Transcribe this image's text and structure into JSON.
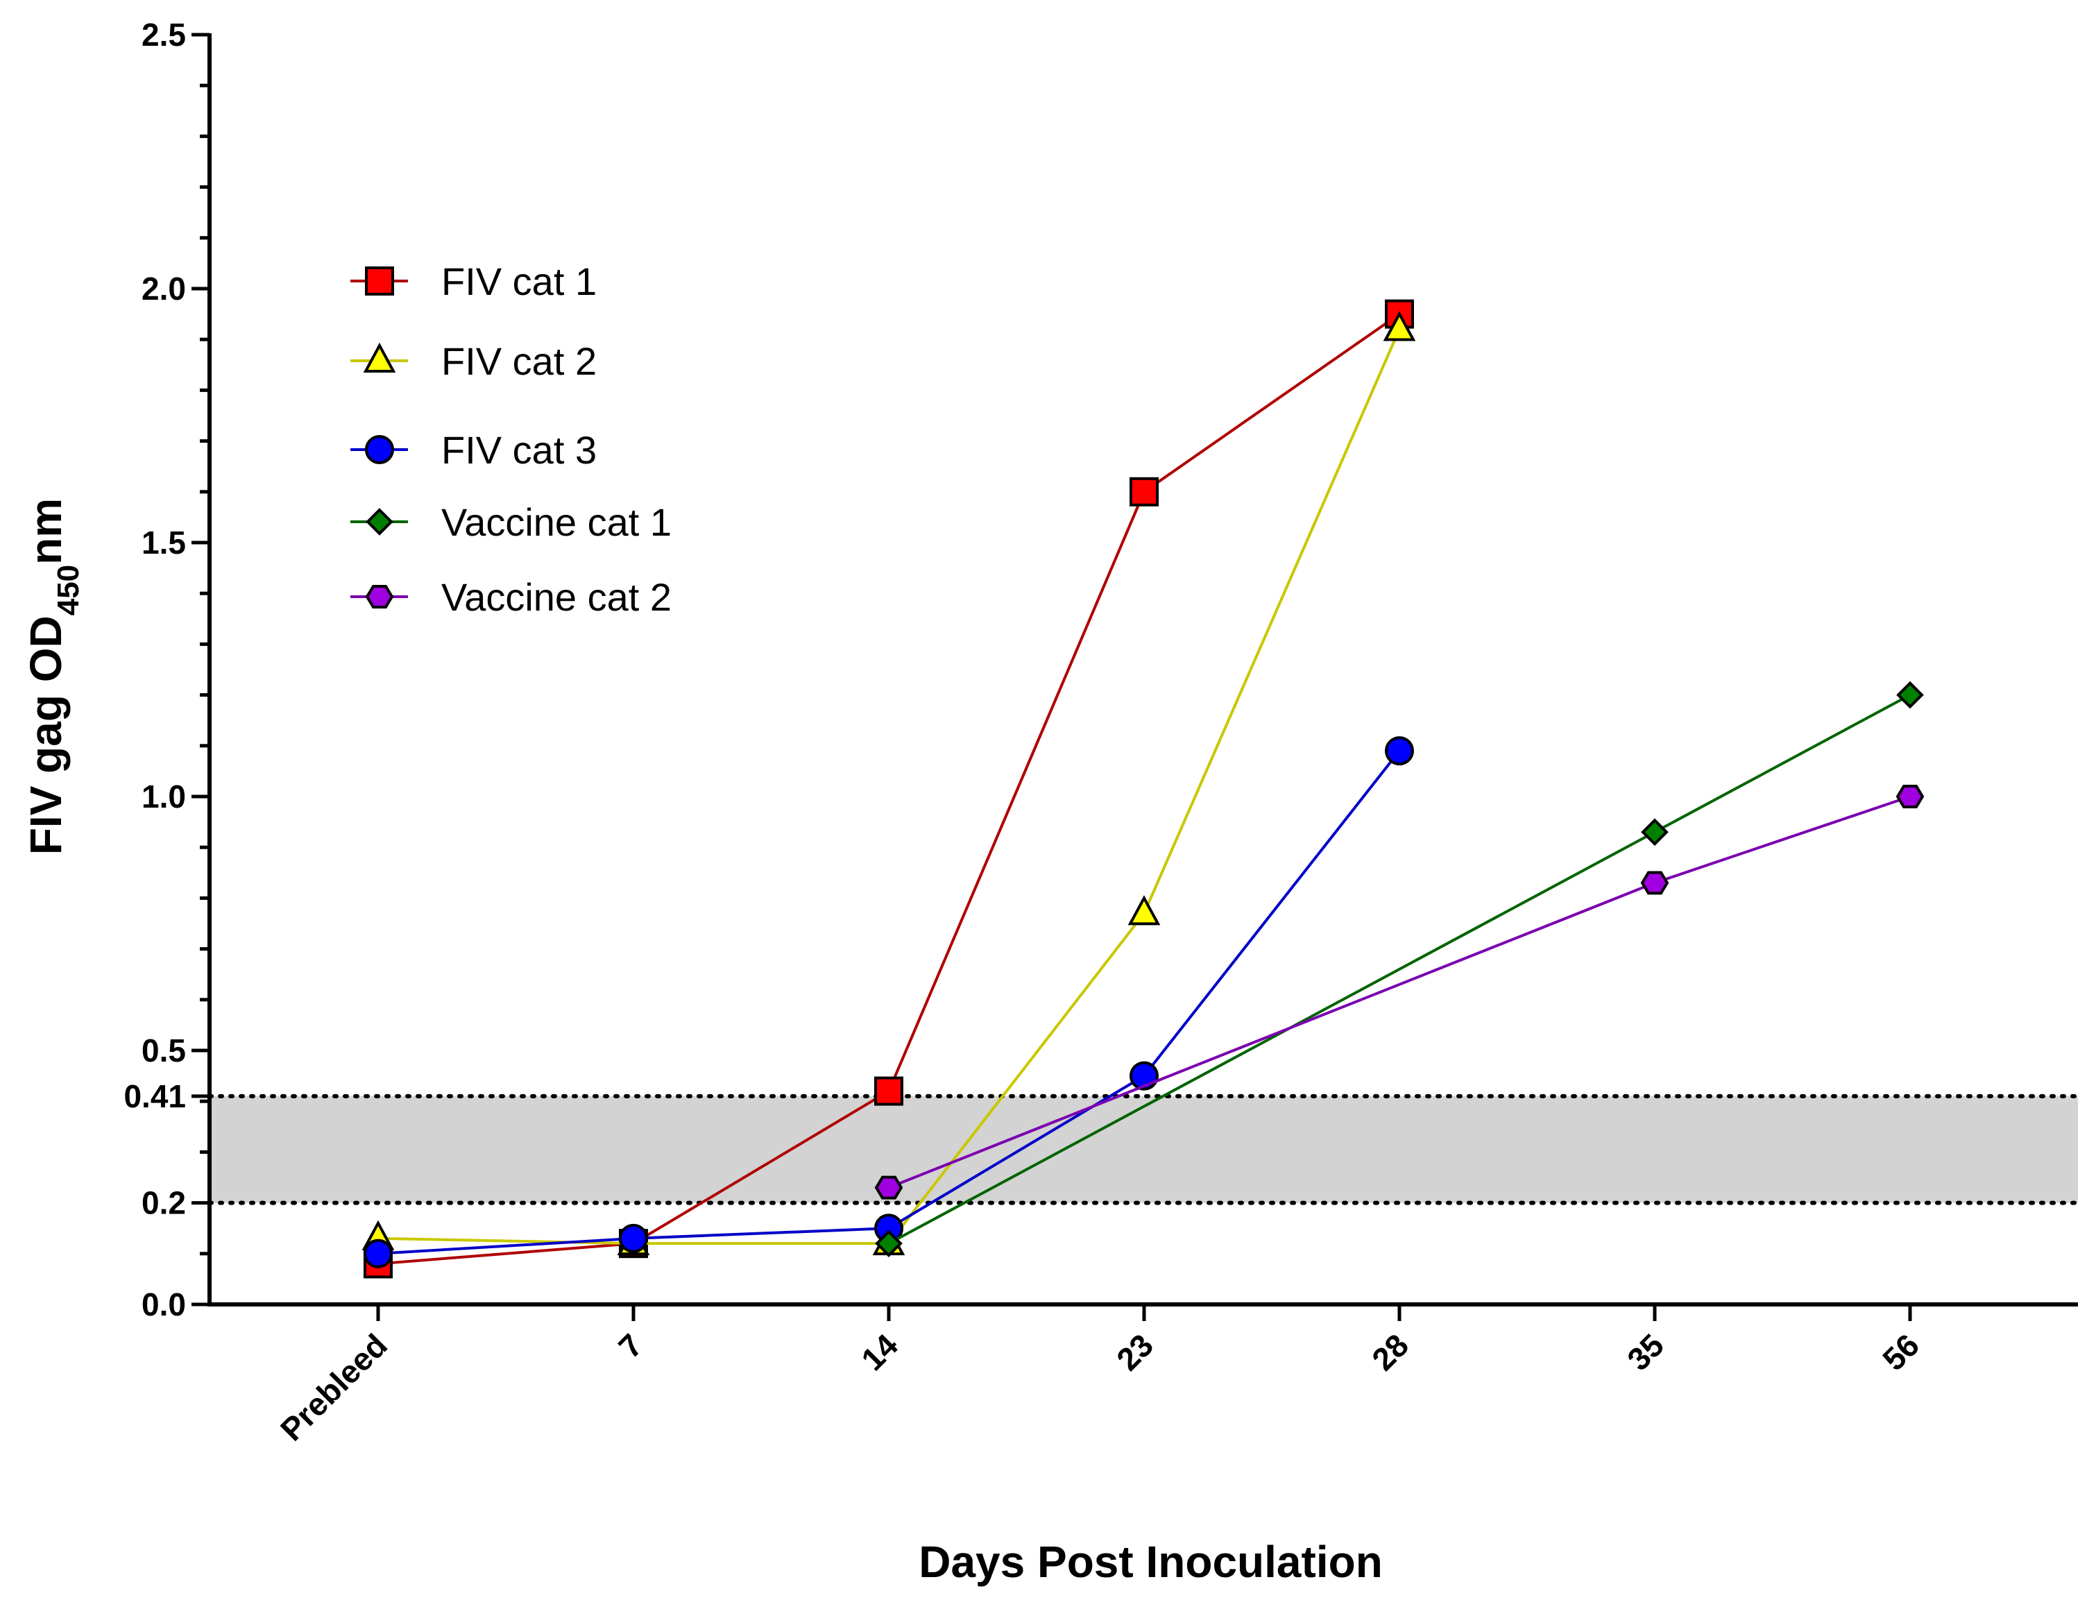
{
  "chart_data": {
    "type": "line",
    "xlabel": "Days Post Inoculation",
    "ylabel_main": "FIV gag OD",
    "ylabel_sub": "450",
    "ylabel_suffix": "nm",
    "categories": [
      "Prebleed",
      "7",
      "14",
      "23",
      "28",
      "35",
      "56"
    ],
    "ylim": [
      0,
      2.5
    ],
    "yticks": [
      {
        "value": 0,
        "label": "0.0"
      },
      {
        "value": 0.2,
        "label": "0.2"
      },
      {
        "value": 0.41,
        "label": "0.41"
      },
      {
        "value": 0.5,
        "label": "0.5"
      },
      {
        "value": 1.0,
        "label": "1.0"
      },
      {
        "value": 1.5,
        "label": "1.5"
      },
      {
        "value": 2.0,
        "label": "2.0"
      },
      {
        "value": 2.5,
        "label": "2.5"
      }
    ],
    "shaded_band": {
      "from": 0.2,
      "to": 0.41,
      "color": "#d3d3d3"
    },
    "legend_position": "top-left",
    "series": [
      {
        "name": "FIV cat 1",
        "marker": "square",
        "line_color": "#b00000",
        "fill": "#ff0000",
        "values": [
          0.08,
          0.12,
          0.42,
          1.6,
          1.95,
          null,
          null
        ]
      },
      {
        "name": "FIV cat 2",
        "marker": "triangle",
        "line_color": "#c8c800",
        "fill": "#ffff00",
        "values": [
          0.13,
          0.12,
          0.12,
          0.77,
          1.92,
          null,
          null
        ]
      },
      {
        "name": "FIV cat 3",
        "marker": "circle",
        "line_color": "#0000c8",
        "fill": "#0000ff",
        "values": [
          0.1,
          0.13,
          0.15,
          0.45,
          1.09,
          null,
          null
        ]
      },
      {
        "name": "Vaccine cat 1",
        "marker": "diamond",
        "line_color": "#006400",
        "fill": "#008000",
        "values": [
          null,
          null,
          0.12,
          null,
          null,
          0.93,
          1.2
        ]
      },
      {
        "name": "Vaccine cat 2",
        "marker": "hexagon",
        "line_color": "#7a00b0",
        "fill": "#a000e0",
        "values": [
          null,
          null,
          0.23,
          null,
          null,
          0.83,
          1.0
        ]
      }
    ]
  }
}
